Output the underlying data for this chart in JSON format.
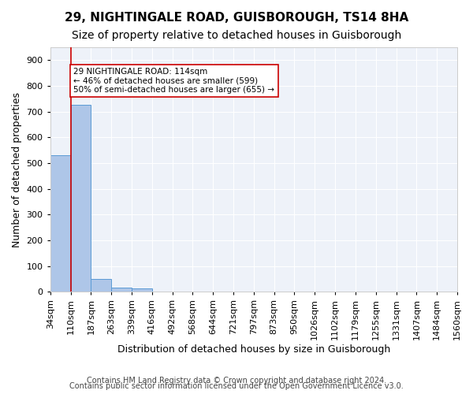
{
  "title1": "29, NIGHTINGALE ROAD, GUISBOROUGH, TS14 8HA",
  "title2": "Size of property relative to detached houses in Guisborough",
  "xlabel": "Distribution of detached houses by size in Guisborough",
  "ylabel": "Number of detached properties",
  "footer1": "Contains HM Land Registry data © Crown copyright and database right 2024.",
  "footer2": "Contains public sector information licensed under the Open Government Licence v3.0.",
  "bin_labels": [
    "34sqm",
    "110sqm",
    "187sqm",
    "263sqm",
    "339sqm",
    "416sqm",
    "492sqm",
    "568sqm",
    "644sqm",
    "721sqm",
    "797sqm",
    "873sqm",
    "950sqm",
    "1026sqm",
    "1102sqm",
    "1179sqm",
    "1255sqm",
    "1331sqm",
    "1407sqm",
    "1484sqm",
    "1560sqm"
  ],
  "bar_heights": [
    530,
    728,
    50,
    15,
    12,
    0,
    0,
    0,
    0,
    0,
    0,
    0,
    0,
    0,
    0,
    0,
    0,
    0,
    0,
    0
  ],
  "bar_color": "#aec6e8",
  "bar_edge_color": "#5b9bd5",
  "red_line_x": 1.0,
  "annotation_text": "29 NIGHTINGALE ROAD: 114sqm\n← 46% of detached houses are smaller (599)\n50% of semi-detached houses are larger (655) →",
  "annotation_box_color": "#ffffff",
  "annotation_border_color": "#cc0000",
  "ylim": [
    0,
    950
  ],
  "yticks": [
    0,
    100,
    200,
    300,
    400,
    500,
    600,
    700,
    800,
    900
  ],
  "background_color": "#eef2f9",
  "grid_color": "#ffffff",
  "title1_fontsize": 11,
  "title2_fontsize": 10,
  "xlabel_fontsize": 9,
  "ylabel_fontsize": 9,
  "tick_fontsize": 8,
  "footer_fontsize": 7
}
